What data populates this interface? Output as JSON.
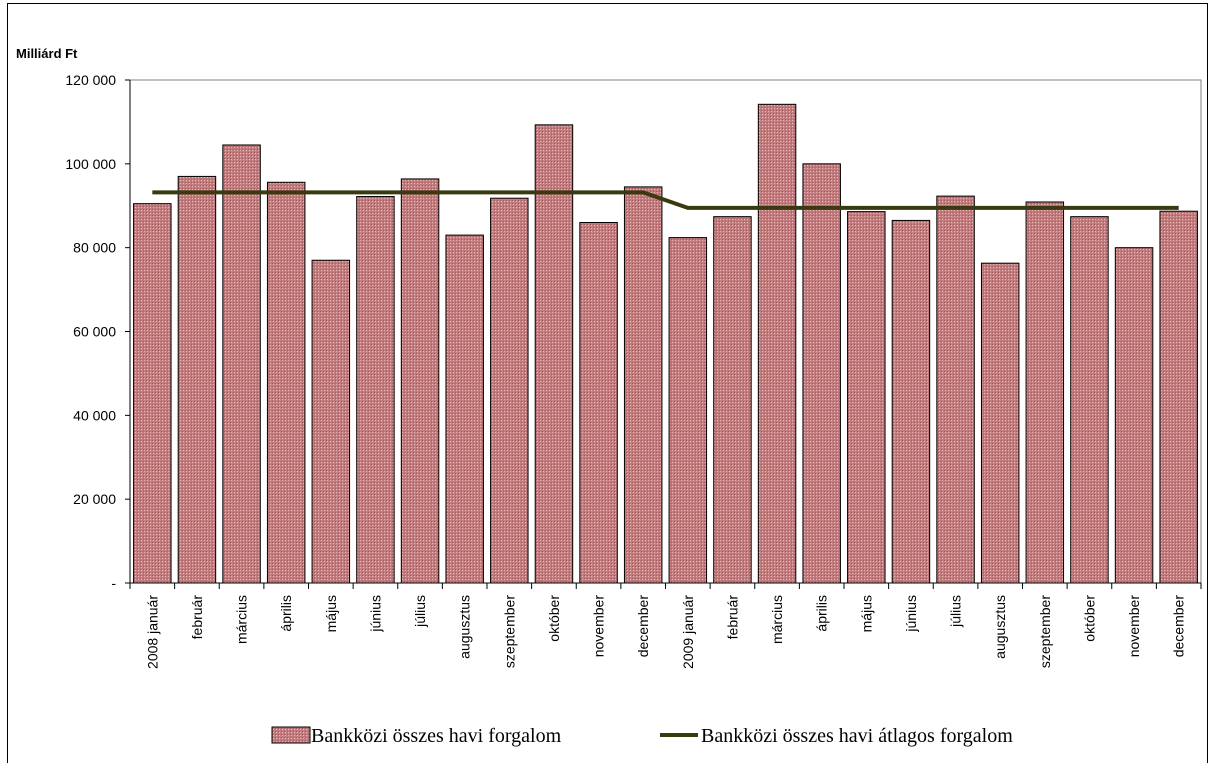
{
  "chart_data": {
    "type": "bar",
    "unit_label": "Milliárd Ft",
    "categories": [
      "2008 január",
      "február",
      "március",
      "április",
      "május",
      "június",
      "július",
      "augusztus",
      "szeptember",
      "október",
      "november",
      "december",
      "2009 január",
      "február",
      "március",
      "április",
      "május",
      "június",
      "július",
      "augusztus",
      "szeptember",
      "október",
      "november",
      "december"
    ],
    "series": [
      {
        "name": "Bankközi összes havi forgalom",
        "type": "bar",
        "color": "#c27c7e",
        "values": [
          90500,
          97000,
          104500,
          95600,
          77000,
          92200,
          96400,
          83000,
          91800,
          109300,
          86000,
          94500,
          82400,
          87400,
          114200,
          100000,
          88600,
          86500,
          92300,
          76300,
          90900,
          87400,
          80000,
          88700
        ]
      },
      {
        "name": "Bankközi összes havi átlagos forgalom",
        "type": "line",
        "color": "#3a3a12",
        "values": [
          93200,
          93200,
          93200,
          93200,
          93200,
          93200,
          93200,
          93200,
          93200,
          93200,
          93200,
          93200,
          89500,
          89500,
          89500,
          89500,
          89500,
          89500,
          89500,
          89500,
          89500,
          89500,
          89500,
          89500
        ]
      }
    ],
    "ylim": [
      0,
      120000
    ],
    "yticks": [
      0,
      20000,
      40000,
      60000,
      80000,
      100000,
      120000
    ],
    "ytick_labels": [
      "-",
      "20 000",
      "40 000",
      "60 000",
      "80 000",
      "100 000",
      "120 000"
    ],
    "grid": false,
    "legend_position": "bottom"
  }
}
